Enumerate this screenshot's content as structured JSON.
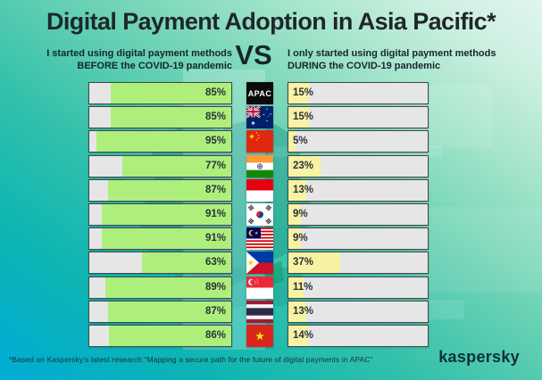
{
  "title": "Digital Payment Adoption in Asia Pacific*",
  "comparison": {
    "left_header": "I started using digital payment methods BEFORE the COVID-19 pandemic",
    "vs_label": "VS",
    "right_header": "I only started using digital payment methods DURING the COVID-19 pandemic"
  },
  "rows": [
    {
      "country": "APAC",
      "badge": "APAC",
      "before": 85,
      "before_label": "85%",
      "after": 15,
      "after_label": "15%"
    },
    {
      "country": "Australia",
      "before": 85,
      "before_label": "85%",
      "after": 15,
      "after_label": "15%"
    },
    {
      "country": "China",
      "before": 95,
      "before_label": "95%",
      "after": 5,
      "after_label": "5%"
    },
    {
      "country": "India",
      "before": 77,
      "before_label": "77%",
      "after": 23,
      "after_label": "23%"
    },
    {
      "country": "Indonesia",
      "before": 87,
      "before_label": "87%",
      "after": 13,
      "after_label": "13%"
    },
    {
      "country": "South Korea",
      "before": 91,
      "before_label": "91%",
      "after": 9,
      "after_label": "9%"
    },
    {
      "country": "Malaysia",
      "before": 91,
      "before_label": "91%",
      "after": 9,
      "after_label": "9%"
    },
    {
      "country": "Philippines",
      "before": 63,
      "before_label": "63%",
      "after": 37,
      "after_label": "37%"
    },
    {
      "country": "Singapore",
      "before": 89,
      "before_label": "89%",
      "after": 11,
      "after_label": "11%"
    },
    {
      "country": "Thailand",
      "before": 87,
      "before_label": "87%",
      "after": 13,
      "after_label": "13%"
    },
    {
      "country": "Vietnam",
      "before": 86,
      "before_label": "86%",
      "after": 14,
      "after_label": "14%"
    }
  ],
  "footnote": "*Based on Kaspersky’s latest research “Mapping a secure path for the future of digital payments in APAC”",
  "brand_logo": "kaspersky",
  "colors": {
    "before_fill": "#aeef7c",
    "after_fill": "#f8f2a4",
    "bar_track": "#e6e6e6",
    "bar_border": "#43484b",
    "background_start": "#00abd6",
    "background_end": "#e0f6ef"
  },
  "chart_data": {
    "type": "bar",
    "orientation": "horizontal",
    "title": "Digital Payment Adoption in Asia Pacific*",
    "unit": "%",
    "xlim": [
      0,
      100
    ],
    "categories": [
      "APAC",
      "Australia",
      "China",
      "India",
      "Indonesia",
      "South Korea",
      "Malaysia",
      "Philippines",
      "Singapore",
      "Thailand",
      "Vietnam"
    ],
    "series": [
      {
        "name": "I started using digital payment methods BEFORE the COVID-19 pandemic",
        "values": [
          85,
          85,
          95,
          77,
          87,
          91,
          91,
          63,
          89,
          87,
          86
        ]
      },
      {
        "name": "I only started using digital payment methods DURING the COVID-19 pandemic",
        "values": [
          15,
          15,
          5,
          23,
          13,
          9,
          9,
          37,
          11,
          13,
          14
        ]
      }
    ],
    "legend_position": "top",
    "grid": false,
    "annotations": "*Based on Kaspersky’s latest research “Mapping a secure path for the future of digital payments in APAC”"
  }
}
